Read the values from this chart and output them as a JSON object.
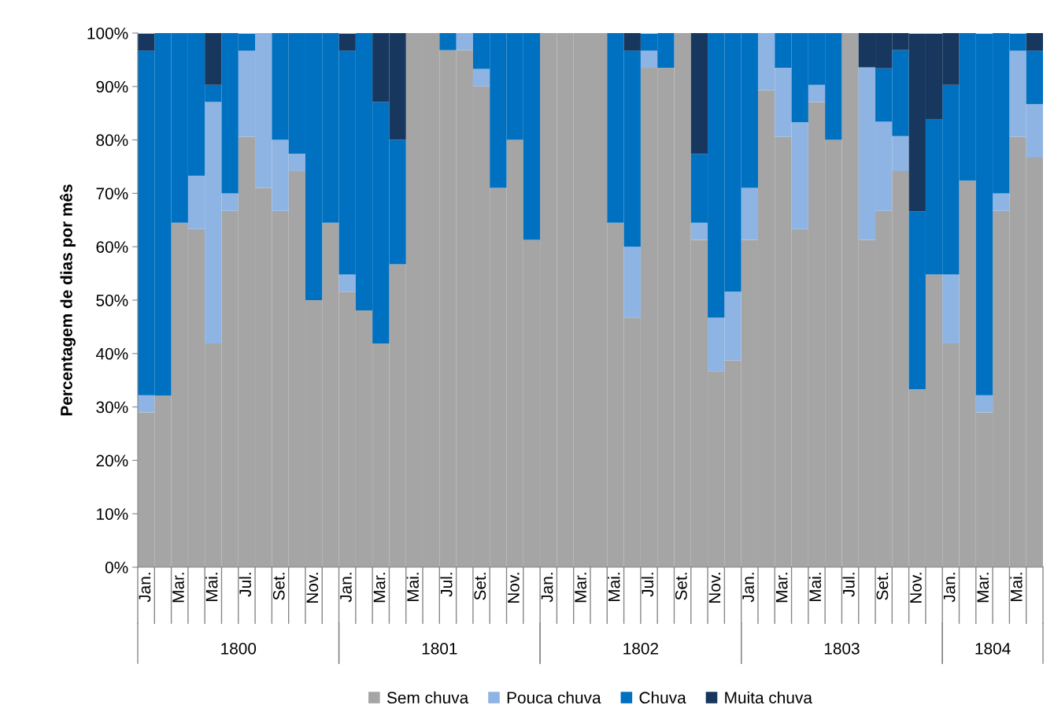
{
  "chart_data": {
    "type": "bar",
    "stacked": true,
    "ylabel": "Percentagem de dias por mês",
    "categories": [
      "Jan.",
      null,
      "Mar.",
      null,
      "Mai.",
      null,
      "Jul.",
      null,
      "Set.",
      null,
      "Nov.",
      null,
      "Jan.",
      null,
      "Mar.",
      null,
      "Mai.",
      null,
      "Jul.",
      null,
      "Set.",
      null,
      "Nov.",
      null,
      "Jan.",
      null,
      "Mar.",
      null,
      "Mai.",
      null,
      "Jul.",
      null,
      "Set.",
      null,
      "Nov.",
      null,
      "Jan.",
      null,
      "Mar.",
      null,
      "Mai.",
      null,
      "Jul.",
      null,
      "Set.",
      null,
      "Nov.",
      null,
      "Jan.",
      null,
      "Mar.",
      null,
      "Mai.",
      null
    ],
    "annotations": [
      "1800",
      "1801",
      "1802",
      "1803",
      "1804"
    ],
    "series": [
      {
        "name": "Sem chuva",
        "color": "#a5a5a5",
        "values": [
          29.0,
          32.1,
          64.5,
          63.3,
          41.9,
          66.7,
          80.6,
          71.0,
          66.7,
          74.2,
          50.0,
          64.5,
          51.6,
          48.1,
          41.9,
          56.7,
          100,
          100,
          96.8,
          96.8,
          90.0,
          71.0,
          80.0,
          61.3,
          100,
          100,
          100,
          100,
          64.5,
          46.7,
          93.5,
          93.5,
          100,
          61.3,
          36.7,
          38.7,
          61.3,
          89.3,
          80.6,
          63.3,
          87.1,
          80.0,
          100,
          61.3,
          66.7,
          74.2,
          33.3,
          54.8,
          41.9,
          72.4,
          29.0,
          66.7,
          80.6,
          76.7
        ]
      },
      {
        "name": "Pouca chuva",
        "color": "#8eb4e3",
        "values": [
          3.2,
          0,
          0,
          10.0,
          45.2,
          3.3,
          16.1,
          29.0,
          13.3,
          3.2,
          0,
          0,
          3.2,
          0,
          0,
          0,
          0,
          0,
          0,
          3.2,
          3.3,
          0,
          0,
          0,
          0,
          0,
          0,
          0,
          0,
          13.3,
          3.2,
          0,
          0,
          3.2,
          10.0,
          12.9,
          9.7,
          10.7,
          12.9,
          20.0,
          3.2,
          0,
          0,
          32.3,
          16.7,
          6.5,
          0,
          0,
          12.9,
          0,
          3.2,
          3.3,
          16.1,
          10.0
        ]
      },
      {
        "name": "Chuva",
        "color": "#0070c0",
        "values": [
          64.5,
          67.9,
          35.5,
          26.7,
          3.2,
          30.0,
          3.2,
          0,
          20.0,
          22.6,
          50.0,
          35.5,
          41.9,
          51.9,
          45.2,
          23.3,
          0,
          0,
          3.2,
          0,
          6.7,
          29.0,
          20.0,
          38.7,
          0,
          0,
          0,
          0,
          35.5,
          36.7,
          3.2,
          6.5,
          0,
          12.9,
          53.3,
          48.4,
          29.0,
          0,
          6.5,
          16.7,
          9.7,
          20.0,
          0,
          0,
          10.0,
          16.1,
          33.3,
          29.0,
          35.5,
          27.6,
          67.7,
          30.0,
          3.2,
          10.0
        ]
      },
      {
        "name": "Muita chuva",
        "color": "#17375e",
        "values": [
          3.2,
          0,
          0,
          0,
          9.7,
          0,
          0,
          0,
          0,
          0,
          0,
          0,
          3.2,
          0,
          12.9,
          20.0,
          0,
          0,
          0,
          0,
          0,
          0,
          0,
          0,
          0,
          0,
          0,
          0,
          0,
          3.3,
          0,
          0,
          0,
          22.6,
          0,
          0,
          0,
          0,
          0,
          0,
          0,
          0,
          0,
          6.5,
          6.7,
          3.2,
          33.3,
          16.1,
          9.7,
          0,
          0,
          0,
          0,
          3.3
        ]
      }
    ],
    "ylim": [
      0,
      100
    ],
    "yticks": [
      {
        "value": 0,
        "label": "0%"
      },
      {
        "value": 10,
        "label": "10%"
      },
      {
        "value": 20,
        "label": "20%"
      },
      {
        "value": 30,
        "label": "30%"
      },
      {
        "value": 40,
        "label": "40%"
      },
      {
        "value": 50,
        "label": "50%"
      },
      {
        "value": 60,
        "label": "60%"
      },
      {
        "value": 70,
        "label": "70%"
      },
      {
        "value": 80,
        "label": "80%"
      },
      {
        "value": 90,
        "label": "90%"
      },
      {
        "value": 100,
        "label": "100%"
      }
    ],
    "grid": false,
    "legend": "bottom"
  }
}
